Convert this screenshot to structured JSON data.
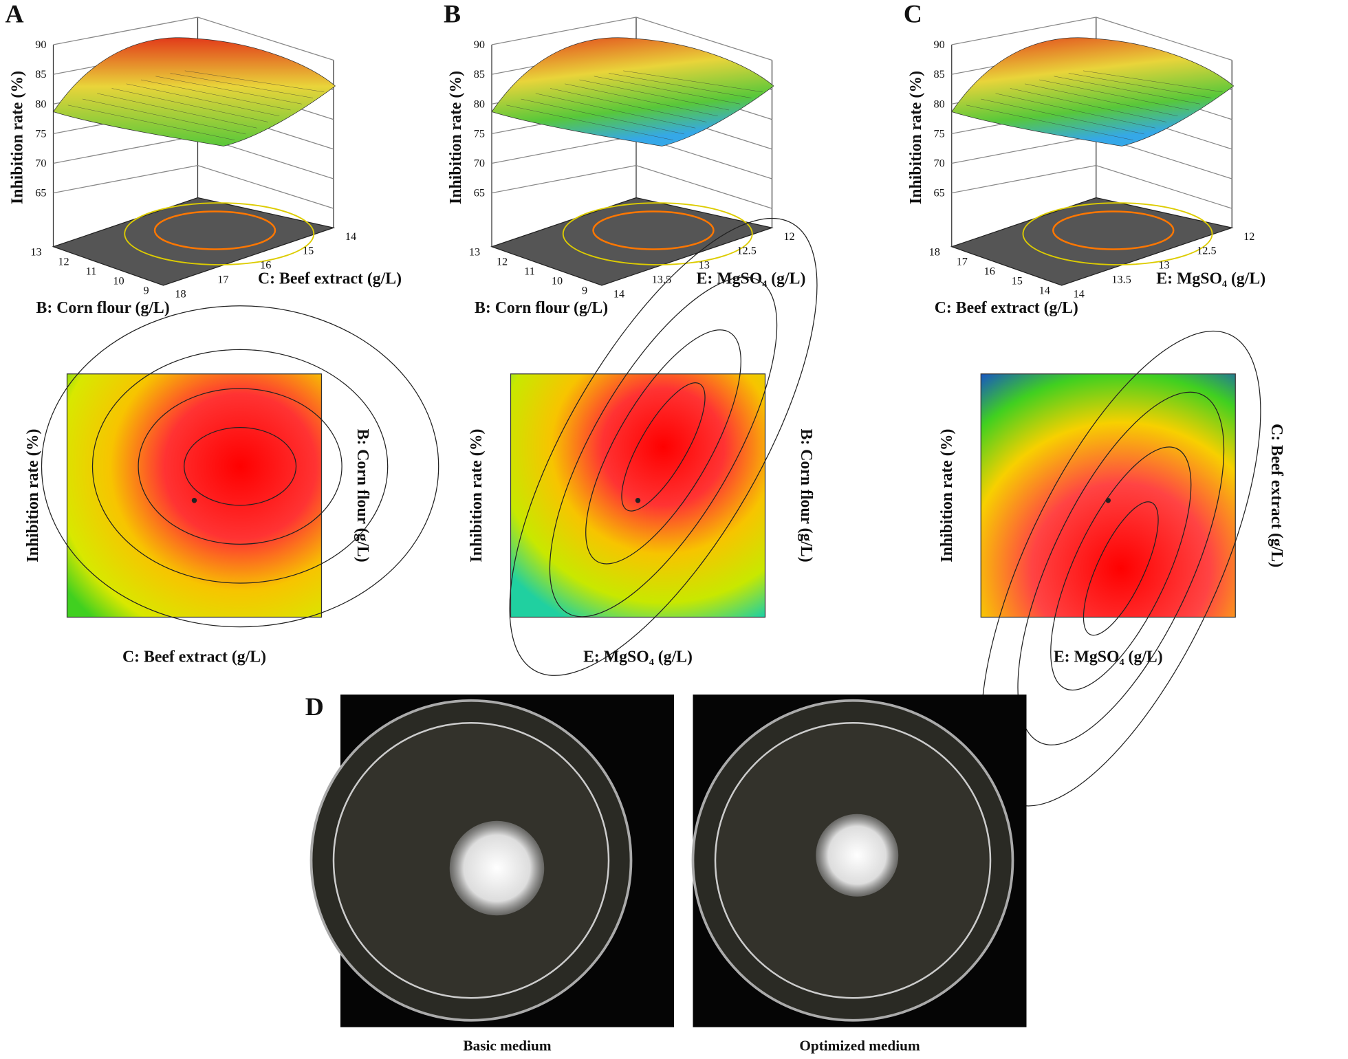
{
  "panels": [
    {
      "letter": "A",
      "surface": {
        "z_label": "Inhibition rate (%)",
        "z_ticks": [
          "90",
          "85",
          "80",
          "75",
          "70",
          "65"
        ],
        "left_axis": {
          "label": "B: Corn flour (g/L)",
          "ticks": [
            "13",
            "12",
            "11",
            "10",
            "9"
          ]
        },
        "right_axis": {
          "label": "C: Beef extract (g/L)",
          "ticks": [
            "14",
            "15",
            "16",
            "17",
            "18"
          ]
        }
      },
      "contour": {
        "y_label": "Inhibition rate (%)",
        "x_label": "C: Beef extract (g/L)",
        "right_label": "B: Corn flour (g/L)"
      }
    },
    {
      "letter": "B",
      "surface": {
        "z_label": "Inhibition rate (%)",
        "z_ticks": [
          "90",
          "85",
          "80",
          "75",
          "70",
          "65"
        ],
        "left_axis": {
          "label": "B: Corn flour (g/L)",
          "ticks": [
            "13",
            "12",
            "11",
            "10",
            "9"
          ]
        },
        "right_axis": {
          "label": "E: MgSO₄ (g/L)",
          "ticks": [
            "12",
            "12.5",
            "13",
            "13.5",
            "14"
          ]
        }
      },
      "contour": {
        "y_label": "Inhibition rate (%)",
        "x_label": "E: MgSO₄ (g/L)",
        "right_label": "B: Corn flour (g/L)"
      }
    },
    {
      "letter": "C",
      "surface": {
        "z_label": "Inhibition rate (%)",
        "z_ticks": [
          "90",
          "85",
          "80",
          "75",
          "70",
          "65"
        ],
        "left_axis": {
          "label": "C: Beef extract (g/L)",
          "ticks": [
            "18",
            "17",
            "16",
            "15",
            "14"
          ]
        },
        "right_axis": {
          "label": "E: MgSO₄ (g/L)",
          "ticks": [
            "12",
            "12.5",
            "13",
            "13.5",
            "14"
          ]
        }
      },
      "contour": {
        "y_label": "Inhibition rate (%)",
        "x_label": "E: MgSO₄ (g/L)",
        "right_label": "C: Beef extract (g/L)"
      }
    }
  ],
  "photos": {
    "letter": "D",
    "captions": [
      "Basic medium",
      "Optimized medium"
    ]
  }
}
